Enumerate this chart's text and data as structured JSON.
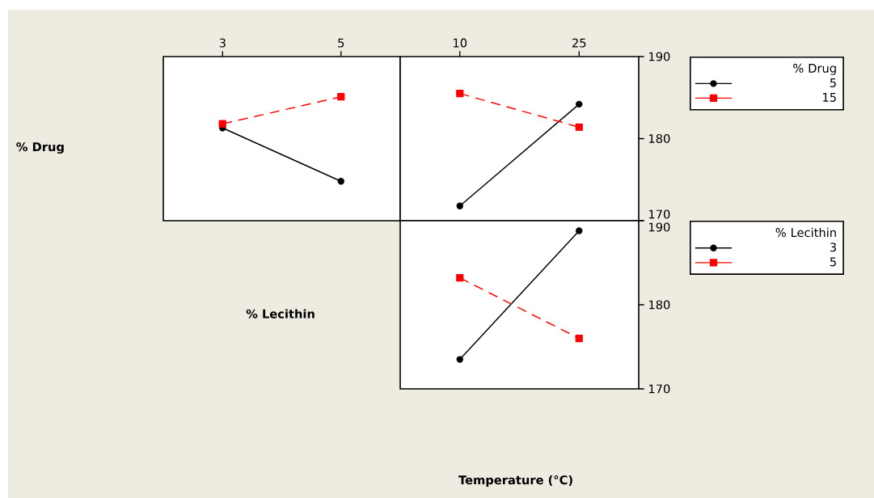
{
  "chart_data": [
    {
      "type": "line",
      "categories": [
        "3",
        "5"
      ],
      "xlabel": "% Lecithin",
      "ylabel": "% Drug",
      "ylim": [
        170,
        190
      ],
      "tick_labels": "x",
      "series": [
        {
          "color": "#000000",
          "values": [
            181.3,
            174.8
          ],
          "marker": "circle",
          "line_style": "solid"
        },
        {
          "color": "#ff0000",
          "values": [
            181.8,
            185.1
          ],
          "marker": "square",
          "line_style": "dashed"
        }
      ]
    },
    {
      "type": "line",
      "categories": [
        "10",
        "25"
      ],
      "ylim": [
        170,
        190
      ],
      "yticks": [
        170,
        180,
        190
      ],
      "legend": "right",
      "legend_title": "% Drug",
      "series": [
        {
          "name": "5",
          "color": "#000000",
          "values": [
            171.8,
            184.2
          ],
          "marker": "circle",
          "line_style": "solid"
        },
        {
          "name": "15",
          "color": "#ff0000",
          "values": [
            185.5,
            181.4
          ],
          "marker": "square",
          "line_style": "dashed"
        }
      ]
    },
    {
      "type": "line",
      "categories": [
        "10",
        "25"
      ],
      "xlabel": "Temperature (°C)",
      "ylim": [
        170,
        190
      ],
      "yticks": [
        170,
        180,
        190
      ],
      "tick_labels": "y",
      "legend": "right",
      "legend_title": "% Lecithin",
      "series": [
        {
          "name": "3",
          "color": "#000000",
          "values": [
            173.5,
            188.8
          ],
          "marker": "circle",
          "line_style": "solid"
        },
        {
          "name": "5",
          "color": "#ff0000",
          "values": [
            183.2,
            176.0
          ],
          "marker": "square",
          "line_style": "dashed"
        }
      ]
    }
  ]
}
